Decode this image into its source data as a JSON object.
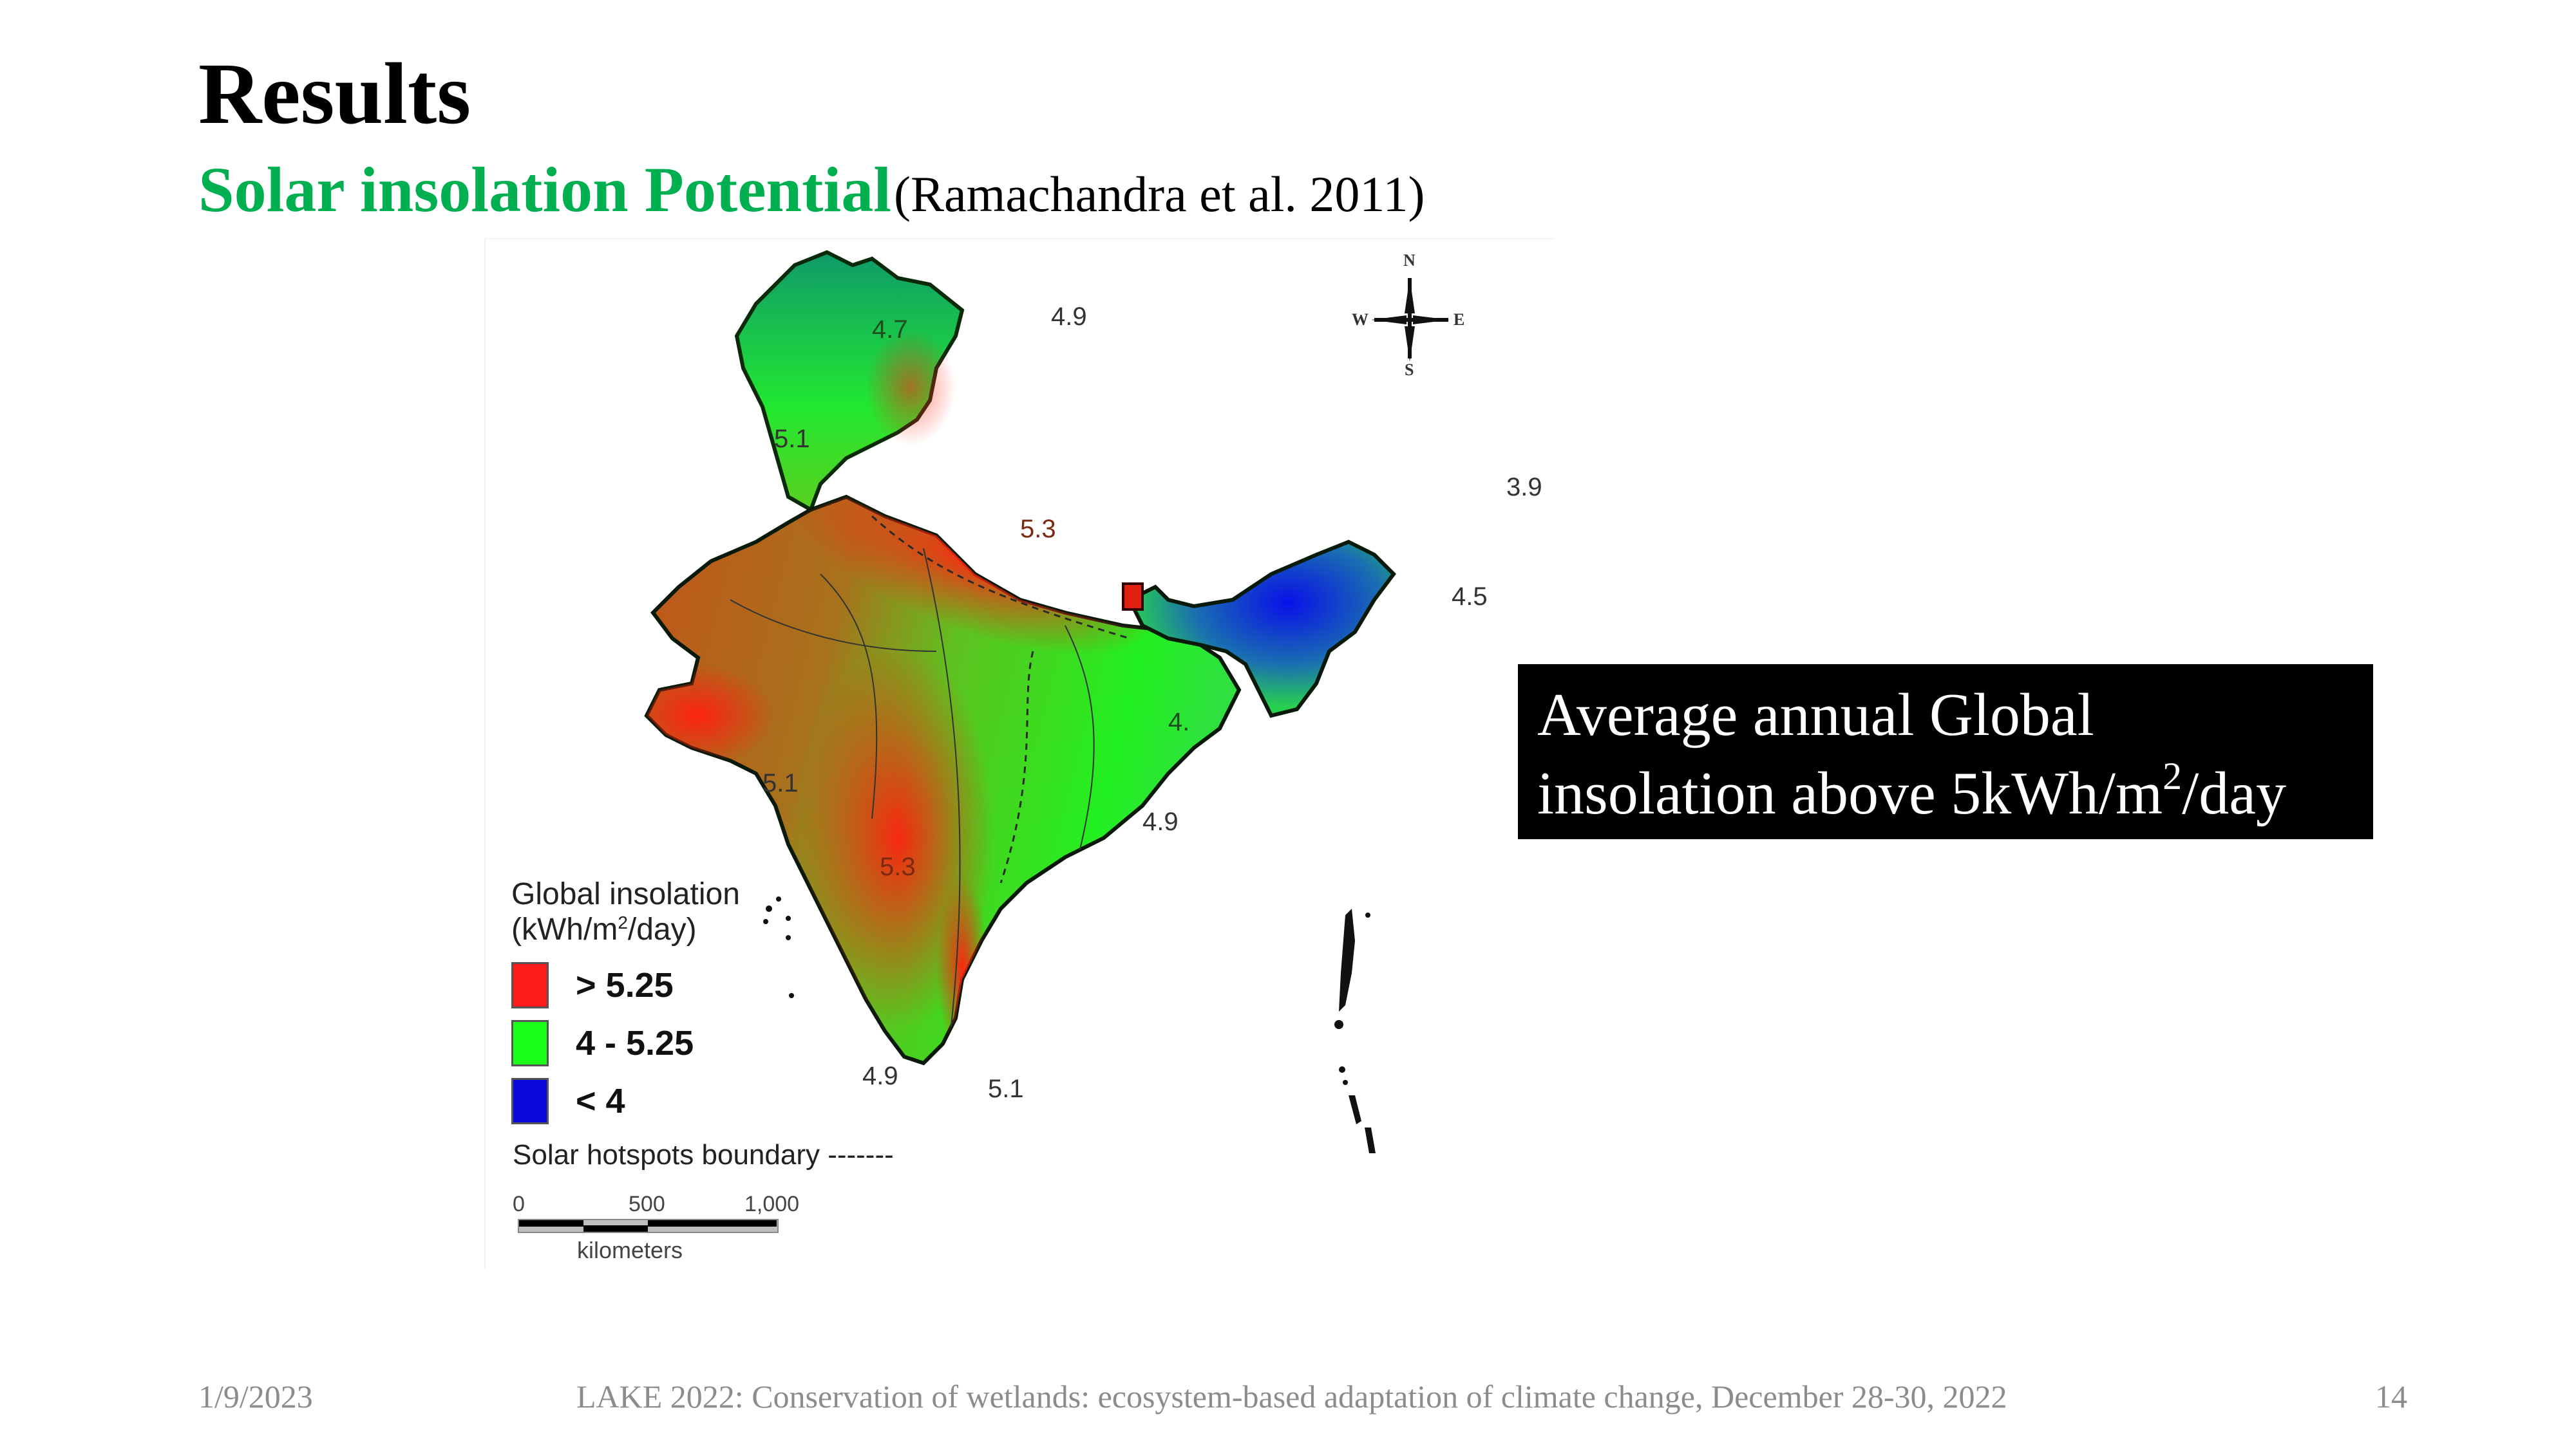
{
  "slide": {
    "title": "Results",
    "subtitle_highlight": "Solar insolation Potential",
    "subtitle_citation": "(Ramachandra et al. 2011)",
    "slide_number": "14"
  },
  "map": {
    "contour_labels": [
      "4.7",
      "4.9",
      "5.1",
      "5.3",
      "3.9",
      "4.5",
      "4.",
      "5.1",
      "4.9",
      "5.3",
      "4.9",
      "5.1"
    ],
    "compass": {
      "n": "N",
      "s": "S",
      "e": "E",
      "w": "W"
    },
    "legend": {
      "title": "Global insolation",
      "unit_prefix": "(kWh/m",
      "unit_sup": "2",
      "unit_suffix": "/day)",
      "items": [
        {
          "label": "> 5.25",
          "color": "#ff1a1a"
        },
        {
          "label": "4 - 5.25",
          "color": "#1aff1a"
        },
        {
          "label": "< 4",
          "color": "#0a0adf"
        }
      ],
      "hotspot_label": "Solar hotspots boundary -------"
    },
    "scale_bar": {
      "ticks": [
        "0",
        "500",
        "1,000"
      ],
      "unit": "kilometers"
    },
    "colors": {
      "high": "#ff2a10",
      "mid": "#20f020",
      "low": "#1020e0",
      "brown": "#b0601a"
    }
  },
  "callout": {
    "line1": "Average annual Global",
    "line2_prefix": "insolation above 5kWh/m",
    "line2_sup": "2",
    "line2_suffix": "/day"
  },
  "footer": {
    "date": "1/9/2023",
    "event": "LAKE 2022: Conservation of wetlands: ecosystem-based adaptation of climate change, December 28-30, 2022"
  }
}
